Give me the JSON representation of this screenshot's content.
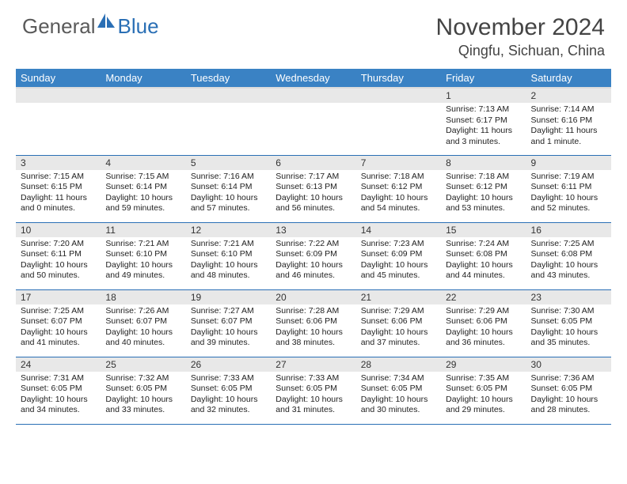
{
  "brand": {
    "part1": "General",
    "part2": "Blue"
  },
  "title": "November 2024",
  "location": "Qingfu, Sichuan, China",
  "colors": {
    "header_bg": "#3a82c4",
    "row_border": "#2a6fb5",
    "daynum_bg": "#e8e8e8",
    "text": "#222222",
    "brand_gray": "#5a5a5a",
    "brand_blue": "#2a6fb5"
  },
  "weekdays": [
    "Sunday",
    "Monday",
    "Tuesday",
    "Wednesday",
    "Thursday",
    "Friday",
    "Saturday"
  ],
  "weeks": [
    [
      {
        "blank": true
      },
      {
        "blank": true
      },
      {
        "blank": true
      },
      {
        "blank": true
      },
      {
        "blank": true
      },
      {
        "day": "1",
        "sunrise": "Sunrise: 7:13 AM",
        "sunset": "Sunset: 6:17 PM",
        "daylight": "Daylight: 11 hours and 3 minutes."
      },
      {
        "day": "2",
        "sunrise": "Sunrise: 7:14 AM",
        "sunset": "Sunset: 6:16 PM",
        "daylight": "Daylight: 11 hours and 1 minute."
      }
    ],
    [
      {
        "day": "3",
        "sunrise": "Sunrise: 7:15 AM",
        "sunset": "Sunset: 6:15 PM",
        "daylight": "Daylight: 11 hours and 0 minutes."
      },
      {
        "day": "4",
        "sunrise": "Sunrise: 7:15 AM",
        "sunset": "Sunset: 6:14 PM",
        "daylight": "Daylight: 10 hours and 59 minutes."
      },
      {
        "day": "5",
        "sunrise": "Sunrise: 7:16 AM",
        "sunset": "Sunset: 6:14 PM",
        "daylight": "Daylight: 10 hours and 57 minutes."
      },
      {
        "day": "6",
        "sunrise": "Sunrise: 7:17 AM",
        "sunset": "Sunset: 6:13 PM",
        "daylight": "Daylight: 10 hours and 56 minutes."
      },
      {
        "day": "7",
        "sunrise": "Sunrise: 7:18 AM",
        "sunset": "Sunset: 6:12 PM",
        "daylight": "Daylight: 10 hours and 54 minutes."
      },
      {
        "day": "8",
        "sunrise": "Sunrise: 7:18 AM",
        "sunset": "Sunset: 6:12 PM",
        "daylight": "Daylight: 10 hours and 53 minutes."
      },
      {
        "day": "9",
        "sunrise": "Sunrise: 7:19 AM",
        "sunset": "Sunset: 6:11 PM",
        "daylight": "Daylight: 10 hours and 52 minutes."
      }
    ],
    [
      {
        "day": "10",
        "sunrise": "Sunrise: 7:20 AM",
        "sunset": "Sunset: 6:11 PM",
        "daylight": "Daylight: 10 hours and 50 minutes."
      },
      {
        "day": "11",
        "sunrise": "Sunrise: 7:21 AM",
        "sunset": "Sunset: 6:10 PM",
        "daylight": "Daylight: 10 hours and 49 minutes."
      },
      {
        "day": "12",
        "sunrise": "Sunrise: 7:21 AM",
        "sunset": "Sunset: 6:10 PM",
        "daylight": "Daylight: 10 hours and 48 minutes."
      },
      {
        "day": "13",
        "sunrise": "Sunrise: 7:22 AM",
        "sunset": "Sunset: 6:09 PM",
        "daylight": "Daylight: 10 hours and 46 minutes."
      },
      {
        "day": "14",
        "sunrise": "Sunrise: 7:23 AM",
        "sunset": "Sunset: 6:09 PM",
        "daylight": "Daylight: 10 hours and 45 minutes."
      },
      {
        "day": "15",
        "sunrise": "Sunrise: 7:24 AM",
        "sunset": "Sunset: 6:08 PM",
        "daylight": "Daylight: 10 hours and 44 minutes."
      },
      {
        "day": "16",
        "sunrise": "Sunrise: 7:25 AM",
        "sunset": "Sunset: 6:08 PM",
        "daylight": "Daylight: 10 hours and 43 minutes."
      }
    ],
    [
      {
        "day": "17",
        "sunrise": "Sunrise: 7:25 AM",
        "sunset": "Sunset: 6:07 PM",
        "daylight": "Daylight: 10 hours and 41 minutes."
      },
      {
        "day": "18",
        "sunrise": "Sunrise: 7:26 AM",
        "sunset": "Sunset: 6:07 PM",
        "daylight": "Daylight: 10 hours and 40 minutes."
      },
      {
        "day": "19",
        "sunrise": "Sunrise: 7:27 AM",
        "sunset": "Sunset: 6:07 PM",
        "daylight": "Daylight: 10 hours and 39 minutes."
      },
      {
        "day": "20",
        "sunrise": "Sunrise: 7:28 AM",
        "sunset": "Sunset: 6:06 PM",
        "daylight": "Daylight: 10 hours and 38 minutes."
      },
      {
        "day": "21",
        "sunrise": "Sunrise: 7:29 AM",
        "sunset": "Sunset: 6:06 PM",
        "daylight": "Daylight: 10 hours and 37 minutes."
      },
      {
        "day": "22",
        "sunrise": "Sunrise: 7:29 AM",
        "sunset": "Sunset: 6:06 PM",
        "daylight": "Daylight: 10 hours and 36 minutes."
      },
      {
        "day": "23",
        "sunrise": "Sunrise: 7:30 AM",
        "sunset": "Sunset: 6:05 PM",
        "daylight": "Daylight: 10 hours and 35 minutes."
      }
    ],
    [
      {
        "day": "24",
        "sunrise": "Sunrise: 7:31 AM",
        "sunset": "Sunset: 6:05 PM",
        "daylight": "Daylight: 10 hours and 34 minutes."
      },
      {
        "day": "25",
        "sunrise": "Sunrise: 7:32 AM",
        "sunset": "Sunset: 6:05 PM",
        "daylight": "Daylight: 10 hours and 33 minutes."
      },
      {
        "day": "26",
        "sunrise": "Sunrise: 7:33 AM",
        "sunset": "Sunset: 6:05 PM",
        "daylight": "Daylight: 10 hours and 32 minutes."
      },
      {
        "day": "27",
        "sunrise": "Sunrise: 7:33 AM",
        "sunset": "Sunset: 6:05 PM",
        "daylight": "Daylight: 10 hours and 31 minutes."
      },
      {
        "day": "28",
        "sunrise": "Sunrise: 7:34 AM",
        "sunset": "Sunset: 6:05 PM",
        "daylight": "Daylight: 10 hours and 30 minutes."
      },
      {
        "day": "29",
        "sunrise": "Sunrise: 7:35 AM",
        "sunset": "Sunset: 6:05 PM",
        "daylight": "Daylight: 10 hours and 29 minutes."
      },
      {
        "day": "30",
        "sunrise": "Sunrise: 7:36 AM",
        "sunset": "Sunset: 6:05 PM",
        "daylight": "Daylight: 10 hours and 28 minutes."
      }
    ]
  ]
}
